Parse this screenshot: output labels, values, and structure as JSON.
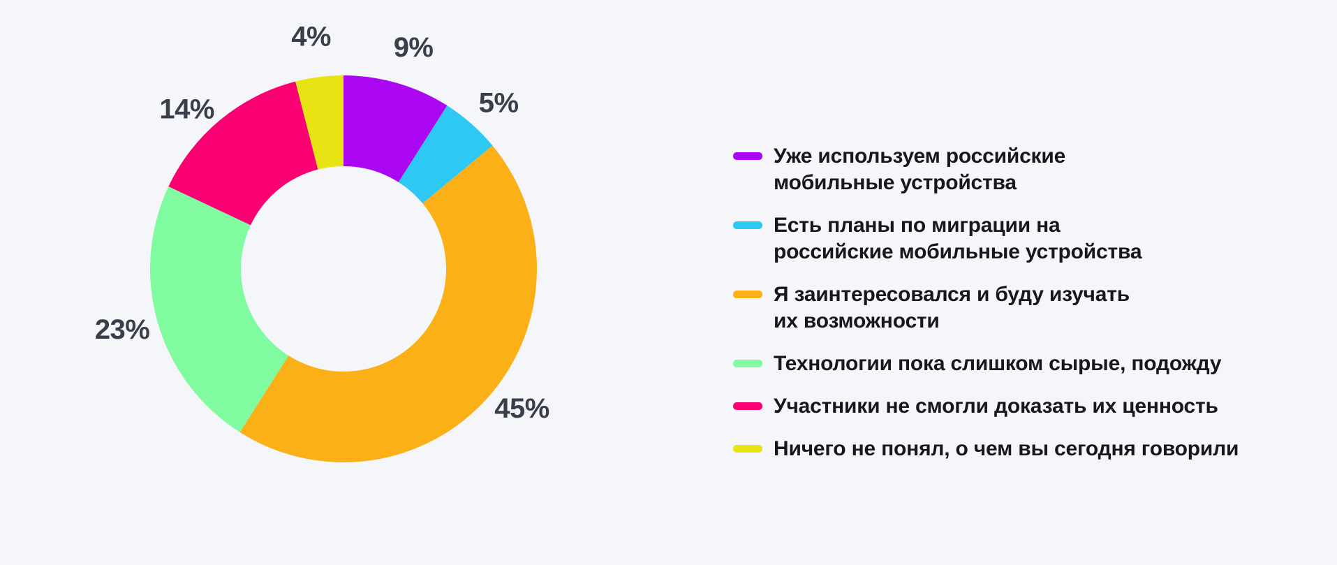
{
  "page": {
    "background_color": "#F5F6F9"
  },
  "chart_data": {
    "type": "pie",
    "variant": "donut",
    "title": "",
    "unit": "%",
    "start_angle_deg": 0,
    "direction": "clockwise",
    "legend_position": "right",
    "percent_label_color": "#3B3E4A",
    "legend_text_color": "#17181E",
    "categories": [
      "Уже используем российские мобильные устройства",
      "Есть планы по миграции на российские мобильные устройства",
      "Я заинтересовался и буду изучать их возможности",
      "Технологии пока слишком сырые, подожду",
      "Участники не смогли доказать их ценность",
      "Ничего не понял, о чем вы сегодня говорили"
    ],
    "values": [
      9,
      5,
      45,
      23,
      14,
      4
    ],
    "slices": [
      {
        "value": 9,
        "percent_label": "9%",
        "color": "#AB06F2",
        "legend_lines": [
          "Уже используем российские",
          "мобильные устройства"
        ]
      },
      {
        "value": 5,
        "percent_label": "5%",
        "color": "#2EC8F4",
        "legend_lines": [
          "Есть планы по миграции на",
          "российские мобильные устройства"
        ]
      },
      {
        "value": 45,
        "percent_label": "45%",
        "color": "#FCB017",
        "legend_lines": [
          "Я заинтересовался и буду изучать",
          "их возможности"
        ]
      },
      {
        "value": 23,
        "percent_label": "23%",
        "color": "#80FBA0",
        "legend_lines": [
          "Технологии пока слишком сырые, подожду"
        ]
      },
      {
        "value": 14,
        "percent_label": "14%",
        "color": "#FB0073",
        "legend_lines": [
          "Участники не смогли доказать их ценность"
        ]
      },
      {
        "value": 4,
        "percent_label": "4%",
        "color": "#E8E414",
        "legend_lines": [
          "Ничего не понял, о чем вы сегодня говорили"
        ]
      }
    ]
  }
}
